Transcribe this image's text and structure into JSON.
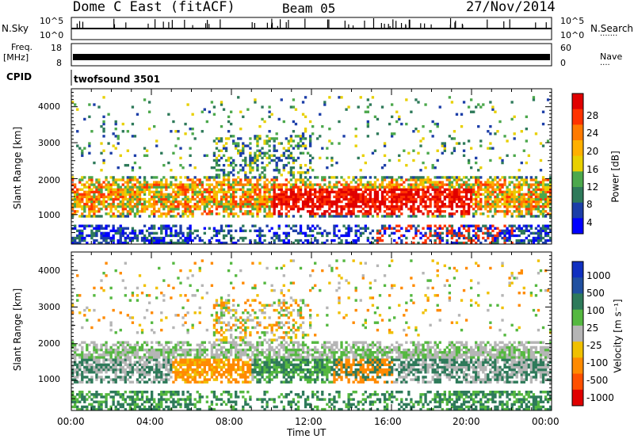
{
  "header": {
    "station": "Dome C East (fitACF)",
    "beam": "Beam 05",
    "date": "27/Nov/2014"
  },
  "noise_panel": {
    "left_label": "N.Sky",
    "left_ticks": [
      "10^5",
      "10^0"
    ],
    "right_ticks": [
      "10^5",
      "10^0"
    ],
    "right_label": "N.Search",
    "right_marker": "·······"
  },
  "freq_panel": {
    "left_label_1": "Freq.",
    "left_label_2": "[MHz]",
    "left_ticks": [
      "18",
      "8"
    ],
    "right_ticks": [
      "60",
      "0"
    ],
    "right_label": "Nave",
    "right_marker": "····"
  },
  "cpid": {
    "label": "CPID",
    "value": "twofsound 3501"
  },
  "x_axis": {
    "label": "Time UT",
    "ticks": [
      "00:00",
      "04:00",
      "08:00",
      "12:00",
      "16:00",
      "20:00",
      "00:00"
    ]
  },
  "chart_data": [
    {
      "type": "heatmap",
      "name": "power",
      "ylabel": "Slant Range [km]",
      "ylim": [
        180,
        4500
      ],
      "yticks": [
        "4000",
        "3000",
        "2000",
        "1000"
      ],
      "colorbar_label": "Power [dB]",
      "colorbar_ticks": [
        "28",
        "24",
        "20",
        "16",
        "12",
        "8",
        "4"
      ],
      "colorbar_colors": [
        "#e00000",
        "#ff3300",
        "#ff7a00",
        "#ffb000",
        "#e8d000",
        "#4ca84c",
        "#2e7a5a",
        "#1c3ea8",
        "#0000ff"
      ],
      "xlim_hours": [
        0,
        24
      ]
    },
    {
      "type": "heatmap",
      "name": "velocity",
      "ylabel": "Slant Range [km]",
      "ylim": [
        180,
        4500
      ],
      "yticks": [
        "4000",
        "3000",
        "2000",
        "1000"
      ],
      "colorbar_label": "Velocity [m s⁻¹]",
      "colorbar_ticks": [
        "1000",
        "500",
        "100",
        "25",
        "-25",
        "-100",
        "-500",
        "-1000"
      ],
      "colorbar_colors": [
        "#1030c0",
        "#2050a0",
        "#2e7a5a",
        "#55b840",
        "#b5b5b5",
        "#f0c000",
        "#ff8a00",
        "#ff5000",
        "#e00000"
      ],
      "xlim_hours": [
        0,
        24
      ]
    }
  ]
}
